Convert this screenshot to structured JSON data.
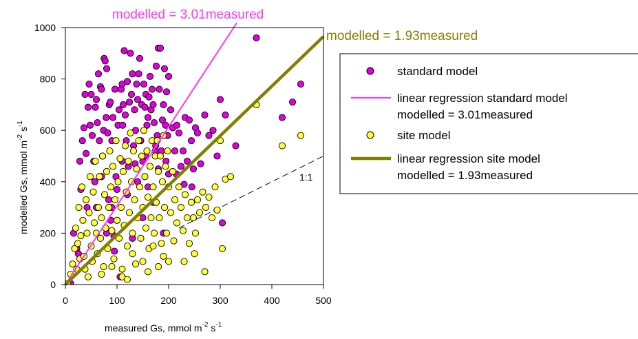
{
  "chart_data": {
    "type": "scatter",
    "xlabel": {
      "main": "measured Gs, mmol m",
      "sup1": "-2",
      "mid": " s",
      "sup2": "-1"
    },
    "ylabel": {
      "main": "modelled Gs,  mmol m",
      "sup1": "-2",
      "mid": " s",
      "sup2": "-1"
    },
    "xlim": [
      0,
      500
    ],
    "ylim": [
      0,
      1000
    ],
    "xticks": [
      "0",
      "100",
      "200",
      "300",
      "400",
      "500"
    ],
    "yticks": [
      "0",
      "200",
      "400",
      "600",
      "800",
      "1000"
    ],
    "grid": false,
    "legend_position": "right",
    "colors": {
      "standard": "#e000e0",
      "site": "#ffff33",
      "standard_line": "#ff33ff",
      "site_line": "#808000",
      "marker_edge": "#000000",
      "one_to_one": "#000000"
    },
    "series": [
      {
        "name": "standard model",
        "marker": "circle",
        "color": "#e000e0",
        "points": [
          [
            0,
            0
          ],
          [
            10,
            5
          ],
          [
            16,
            200
          ],
          [
            22,
            140
          ],
          [
            25,
            120
          ],
          [
            28,
            480
          ],
          [
            30,
            370
          ],
          [
            33,
            560
          ],
          [
            36,
            610
          ],
          [
            38,
            740
          ],
          [
            40,
            510
          ],
          [
            42,
            300
          ],
          [
            44,
            690
          ],
          [
            46,
            780
          ],
          [
            48,
            620
          ],
          [
            50,
            740
          ],
          [
            52,
            580
          ],
          [
            55,
            480
          ],
          [
            57,
            400
          ],
          [
            58,
            690
          ],
          [
            60,
            720
          ],
          [
            62,
            630
          ],
          [
            64,
            820
          ],
          [
            66,
            560
          ],
          [
            68,
            770
          ],
          [
            70,
            760
          ],
          [
            72,
            500
          ],
          [
            74,
            600
          ],
          [
            75,
            880
          ],
          [
            77,
            870
          ],
          [
            79,
            650
          ],
          [
            80,
            840
          ],
          [
            82,
            590
          ],
          [
            84,
            330
          ],
          [
            85,
            700
          ],
          [
            87,
            710
          ],
          [
            88,
            250
          ],
          [
            90,
            560
          ],
          [
            92,
            650
          ],
          [
            94,
            190
          ],
          [
            95,
            130
          ],
          [
            96,
            760
          ],
          [
            98,
            420
          ],
          [
            100,
            370
          ],
          [
            102,
            620
          ],
          [
            104,
            680
          ],
          [
            106,
            30
          ],
          [
            108,
            760
          ],
          [
            110,
            780
          ],
          [
            111,
            620
          ],
          [
            112,
            700
          ],
          [
            114,
            910
          ],
          [
            116,
            660
          ],
          [
            118,
            560
          ],
          [
            120,
            790
          ],
          [
            122,
            460
          ],
          [
            124,
            710
          ],
          [
            126,
            900
          ],
          [
            128,
            740
          ],
          [
            130,
            820
          ],
          [
            132,
            540
          ],
          [
            134,
            680
          ],
          [
            136,
            600
          ],
          [
            138,
            780
          ],
          [
            140,
            720
          ],
          [
            142,
            820
          ],
          [
            144,
            880
          ],
          [
            146,
            560
          ],
          [
            148,
            700
          ],
          [
            150,
            480
          ],
          [
            152,
            780
          ],
          [
            154,
            690
          ],
          [
            156,
            740
          ],
          [
            158,
            620
          ],
          [
            160,
            650
          ],
          [
            162,
            730
          ],
          [
            164,
            810
          ],
          [
            166,
            680
          ],
          [
            168,
            760
          ],
          [
            170,
            700
          ],
          [
            172,
            630
          ],
          [
            174,
            520
          ],
          [
            176,
            850
          ],
          [
            178,
            580
          ],
          [
            180,
            920
          ],
          [
            182,
            760
          ],
          [
            184,
            920
          ],
          [
            186,
            520
          ],
          [
            188,
            640
          ],
          [
            190,
            700
          ],
          [
            192,
            840
          ],
          [
            194,
            620
          ],
          [
            196,
            750
          ],
          [
            198,
            580
          ],
          [
            200,
            810
          ],
          [
            204,
            680
          ],
          [
            208,
            610
          ],
          [
            212,
            520
          ],
          [
            216,
            620
          ],
          [
            220,
            590
          ],
          [
            224,
            460
          ],
          [
            228,
            520
          ],
          [
            232,
            650
          ],
          [
            236,
            480
          ],
          [
            240,
            640
          ],
          [
            244,
            560
          ],
          [
            248,
            450
          ],
          [
            252,
            610
          ],
          [
            256,
            590
          ],
          [
            262,
            470
          ],
          [
            270,
            660
          ],
          [
            278,
            580
          ],
          [
            286,
            600
          ],
          [
            294,
            500
          ],
          [
            300,
            720
          ],
          [
            304,
            240
          ],
          [
            310,
            660
          ],
          [
            330,
            540
          ],
          [
            370,
            960
          ],
          [
            420,
            650
          ],
          [
            440,
            710
          ],
          [
            456,
            780
          ],
          [
            60,
            300
          ],
          [
            80,
            200
          ],
          [
            100,
            250
          ],
          [
            120,
            350
          ],
          [
            140,
            400
          ],
          [
            160,
            380
          ],
          [
            180,
            450
          ],
          [
            200,
            430
          ],
          [
            70,
            420
          ],
          [
            90,
            300
          ],
          [
            130,
            180
          ],
          [
            150,
            260
          ],
          [
            170,
            320
          ],
          [
            190,
            200
          ],
          [
            110,
            480
          ],
          [
            135,
            470
          ],
          [
            155,
            500
          ],
          [
            175,
            540
          ],
          [
            195,
            480
          ],
          [
            215,
            430
          ],
          [
            230,
            390
          ],
          [
            245,
            380
          ]
        ]
      },
      {
        "name": "site model",
        "marker": "circle",
        "color": "#ffff33",
        "points": [
          [
            0,
            0
          ],
          [
            4,
            3
          ],
          [
            10,
            40
          ],
          [
            14,
            80
          ],
          [
            18,
            140
          ],
          [
            20,
            220
          ],
          [
            22,
            60
          ],
          [
            24,
            160
          ],
          [
            26,
            300
          ],
          [
            28,
            100
          ],
          [
            30,
            190
          ],
          [
            32,
            380
          ],
          [
            34,
            250
          ],
          [
            36,
            110
          ],
          [
            38,
            60
          ],
          [
            40,
            330
          ],
          [
            42,
            200
          ],
          [
            44,
            30
          ],
          [
            46,
            280
          ],
          [
            48,
            420
          ],
          [
            50,
            150
          ],
          [
            52,
            90
          ],
          [
            54,
            360
          ],
          [
            56,
            240
          ],
          [
            58,
            480
          ],
          [
            60,
            200
          ],
          [
            62,
            120
          ],
          [
            64,
            300
          ],
          [
            66,
            420
          ],
          [
            68,
            180
          ],
          [
            70,
            260
          ],
          [
            72,
            500
          ],
          [
            74,
            70
          ],
          [
            76,
            350
          ],
          [
            78,
            220
          ],
          [
            80,
            440
          ],
          [
            82,
            140
          ],
          [
            84,
            300
          ],
          [
            86,
            520
          ],
          [
            88,
            380
          ],
          [
            90,
            210
          ],
          [
            92,
            460
          ],
          [
            94,
            100
          ],
          [
            96,
            330
          ],
          [
            98,
            560
          ],
          [
            100,
            250
          ],
          [
            102,
            400
          ],
          [
            104,
            180
          ],
          [
            106,
            490
          ],
          [
            108,
            300
          ],
          [
            110,
            60
          ],
          [
            112,
            440
          ],
          [
            114,
            230
          ],
          [
            116,
            540
          ],
          [
            118,
            360
          ],
          [
            120,
            150
          ],
          [
            122,
            480
          ],
          [
            124,
            280
          ],
          [
            126,
            590
          ],
          [
            128,
            400
          ],
          [
            130,
            200
          ],
          [
            132,
            520
          ],
          [
            134,
            330
          ],
          [
            136,
            80
          ],
          [
            138,
            450
          ],
          [
            140,
            260
          ],
          [
            142,
            560
          ],
          [
            144,
            380
          ],
          [
            146,
            180
          ],
          [
            148,
            500
          ],
          [
            150,
            300
          ],
          [
            152,
            600
          ],
          [
            154,
            420
          ],
          [
            156,
            220
          ],
          [
            158,
            520
          ],
          [
            160,
            340
          ],
          [
            162,
            140
          ],
          [
            164,
            460
          ],
          [
            166,
            260
          ],
          [
            168,
            560
          ],
          [
            170,
            380
          ],
          [
            172,
            200
          ],
          [
            174,
            500
          ],
          [
            176,
            320
          ],
          [
            178,
            560
          ],
          [
            180,
            440
          ],
          [
            182,
            260
          ],
          [
            184,
            500
          ],
          [
            186,
            160
          ],
          [
            188,
            400
          ],
          [
            190,
            580
          ],
          [
            192,
            300
          ],
          [
            194,
            460
          ],
          [
            196,
            200
          ],
          [
            198,
            520
          ],
          [
            200,
            380
          ],
          [
            204,
            280
          ],
          [
            208,
            440
          ],
          [
            212,
            330
          ],
          [
            216,
            240
          ],
          [
            220,
            380
          ],
          [
            224,
            300
          ],
          [
            228,
            210
          ],
          [
            232,
            350
          ],
          [
            236,
            260
          ],
          [
            240,
            160
          ],
          [
            244,
            320
          ],
          [
            248,
            260
          ],
          [
            252,
            200
          ],
          [
            256,
            330
          ],
          [
            260,
            280
          ],
          [
            266,
            360
          ],
          [
            272,
            300
          ],
          [
            278,
            340
          ],
          [
            284,
            260
          ],
          [
            290,
            380
          ],
          [
            294,
            290
          ],
          [
            300,
            560
          ],
          [
            304,
            140
          ],
          [
            310,
            410
          ],
          [
            320,
            420
          ],
          [
            370,
            700
          ],
          [
            420,
            540
          ],
          [
            456,
            580
          ],
          [
            70,
            40
          ],
          [
            90,
            70
          ],
          [
            110,
            30
          ],
          [
            130,
            120
          ],
          [
            150,
            90
          ],
          [
            170,
            150
          ],
          [
            190,
            110
          ],
          [
            210,
            170
          ],
          [
            120,
            20
          ],
          [
            160,
            50
          ],
          [
            180,
            70
          ],
          [
            200,
            90
          ],
          [
            230,
            90
          ],
          [
            250,
            120
          ],
          [
            270,
            50
          ]
        ]
      }
    ],
    "lines": [
      {
        "name": "linear regression standard model",
        "equation": "modelled = 3.01measured",
        "slope": 3.01,
        "color": "#ff33ff",
        "width": 2
      },
      {
        "name": "linear regression site model",
        "equation": "modelled = 1.93measured",
        "slope": 1.93,
        "color": "#808000",
        "width": 4.5
      },
      {
        "name": "1:1",
        "label": "1:1",
        "slope": 1,
        "color": "#000000",
        "dashed": true
      }
    ],
    "annotations": {
      "standard_line_label": "modelled = 3.01measured",
      "site_line_label": "modelled = 1.93measured",
      "one_to_one_label": "1:1"
    },
    "legend": [
      {
        "kind": "marker",
        "color": "#e000e0",
        "label": "standard model"
      },
      {
        "kind": "line",
        "color": "#ff33ff",
        "width": 2,
        "label": "linear regression standard model",
        "sublabel": "modelled = 3.01measured",
        "sublabel_color": "#ff33ff"
      },
      {
        "kind": "marker",
        "color": "#ffff33",
        "label": "site model"
      },
      {
        "kind": "line",
        "color": "#808000",
        "width": 4.5,
        "label": "linear regression site model",
        "sublabel": "modelled = 1.93measured",
        "sublabel_color": "#808000"
      }
    ]
  }
}
